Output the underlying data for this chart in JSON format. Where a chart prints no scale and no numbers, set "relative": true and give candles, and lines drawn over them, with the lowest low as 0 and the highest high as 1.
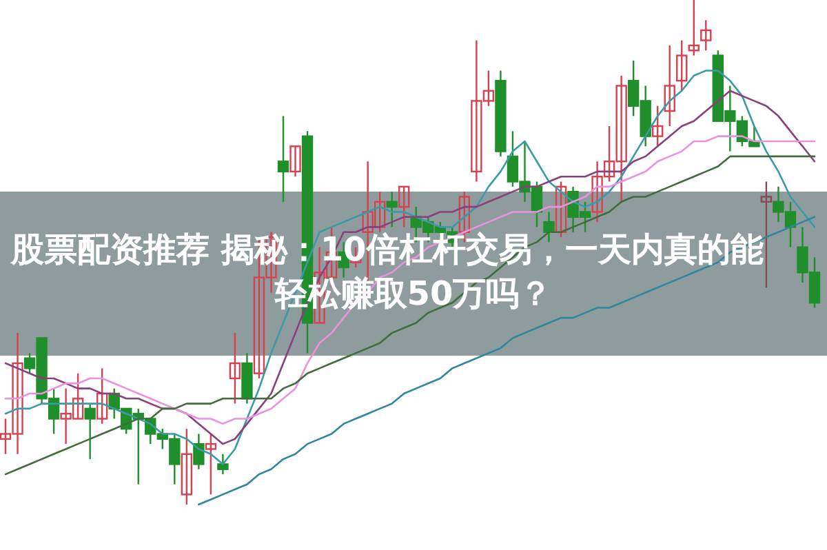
{
  "chart_data": {
    "type": "candlestick",
    "title": "股票配资推荐 揭秘：10倍杠杆交易，一天内真的能轻松赚取50万吗？",
    "relative": true,
    "categories": [
      null,
      null,
      null,
      null,
      null,
      null,
      null,
      null,
      null,
      null,
      null,
      null,
      null,
      null,
      null,
      null,
      null,
      null,
      null,
      null,
      null,
      null,
      null,
      null,
      null,
      null,
      null,
      null,
      null,
      null,
      null,
      null,
      null,
      null,
      null,
      null,
      null,
      null,
      null,
      null,
      null,
      null,
      null,
      null,
      null,
      null,
      null,
      null,
      null,
      null,
      null,
      null,
      null,
      null,
      null,
      null,
      null,
      null,
      null,
      null,
      null,
      null,
      null,
      null,
      null,
      null,
      null,
      null
    ],
    "colors": [
      "#d8404f",
      "#d8404f",
      "#1f8f2b",
      "#1f8f2b",
      "#1f8f2b",
      "#d8404f",
      "#d8404f",
      "#1f8f2b",
      "#d8404f",
      "#1f8f2b",
      "#1f8f2b",
      "#1f8f2b",
      "#1f8f2b",
      "#1f8f2b",
      "#1f8f2b",
      "#d8404f",
      "#1f8f2b",
      "#d8404f",
      "#1f8f2b",
      "#d8404f",
      "#1f8f2b",
      "#d8404f",
      "#d8404f",
      "#1f8f2b",
      "#d8404f",
      "#1f8f2b",
      "#d8404f",
      "#d8404f",
      "#1f8f2b",
      "#d8404f",
      "#d8404f",
      "#d8404f",
      "#1f8f2b",
      "#d8404f",
      "#1f8f2b",
      "#1f8f2b",
      "#1f8f2b",
      "#1f8f2b",
      "#d8404f",
      "#d8404f",
      "#d8404f",
      "#1f8f2b",
      "#1f8f2b",
      "#1f8f2b",
      "#1f8f2b",
      "#1f8f2b",
      "#d8404f",
      "#1f8f2b",
      "#1f8f2b",
      "#d8404f",
      "#d8404f",
      "#d8404f",
      "#1f8f2b",
      "#1f8f2b",
      "#d8404f",
      "#d8404f",
      "#d8404f",
      "#d8404f",
      "#d8404f",
      "#1f8f2b",
      "#1f8f2b",
      "#1f8f2b",
      "#1f8f2b",
      "#8a4a55",
      "#1f8f2b",
      "#1f8f2b",
      "#1f8f2b",
      "#1f8f2b"
    ],
    "ohlc": [
      [
        0.13,
        0.17,
        0.1,
        0.14
      ],
      [
        0.14,
        0.34,
        0.1,
        0.28
      ],
      [
        0.29,
        0.3,
        0.26,
        0.27
      ],
      [
        0.33,
        0.33,
        0.2,
        0.21
      ],
      [
        0.21,
        0.23,
        0.14,
        0.17
      ],
      [
        0.17,
        0.23,
        0.12,
        0.18
      ],
      [
        0.17,
        0.26,
        0.17,
        0.21
      ],
      [
        0.19,
        0.2,
        0.09,
        0.17
      ],
      [
        0.17,
        0.27,
        0.16,
        0.22
      ],
      [
        0.22,
        0.23,
        0.17,
        0.19
      ],
      [
        0.19,
        0.19,
        0.14,
        0.15
      ],
      [
        0.18,
        0.19,
        0.04,
        0.17
      ],
      [
        0.17,
        0.17,
        0.12,
        0.14
      ],
      [
        0.14,
        0.15,
        0.11,
        0.13
      ],
      [
        0.13,
        0.14,
        0.04,
        0.08
      ],
      [
        0.02,
        0.15,
        0,
        0.1
      ],
      [
        0.12,
        0.14,
        0.07,
        0.08
      ],
      [
        0.11,
        0.14,
        0.02,
        0.12
      ],
      [
        0.08,
        0.1,
        0.06,
        0.07
      ],
      [
        0.25,
        0.34,
        0.2,
        0.28
      ],
      [
        0.28,
        0.3,
        0.2,
        0.21
      ],
      [
        0.26,
        0.53,
        0.25,
        0.45
      ],
      [
        0.45,
        0.54,
        0.42,
        0.53
      ],
      [
        0.68,
        0.77,
        0.6,
        0.66
      ],
      [
        0.66,
        0.71,
        0.65,
        0.71
      ],
      [
        0.73,
        0.74,
        0.3,
        0.36
      ],
      [
        0.36,
        0.51,
        0.36,
        0.46
      ],
      [
        0.45,
        0.55,
        0.43,
        0.5
      ],
      [
        0.5,
        0.52,
        0.45,
        0.47
      ],
      [
        0.48,
        0.51,
        0.47,
        0.49
      ],
      [
        0.54,
        0.68,
        0.44,
        0.58
      ],
      [
        0.55,
        0.62,
        0.54,
        0.6
      ],
      [
        0.6,
        0.62,
        0.55,
        0.59
      ],
      [
        0.59,
        0.63,
        0.55,
        0.63
      ],
      [
        0.57,
        0.59,
        0.52,
        0.55
      ],
      [
        0.56,
        0.57,
        0.52,
        0.54
      ],
      [
        0.55,
        0.56,
        0.53,
        0.54
      ],
      [
        0.54,
        0.55,
        0.51,
        0.52
      ],
      [
        0.54,
        0.62,
        0.52,
        0.61
      ],
      [
        0.66,
        0.92,
        0.64,
        0.8
      ],
      [
        0.8,
        0.86,
        0.79,
        0.82
      ],
      [
        0.84,
        0.86,
        0.69,
        0.7
      ],
      [
        0.69,
        0.74,
        0.63,
        0.64
      ],
      [
        0.64,
        0.72,
        0.6,
        0.62
      ],
      [
        0.63,
        0.64,
        0.55,
        0.58
      ],
      [
        0.56,
        0.58,
        0.52,
        0.54
      ],
      [
        0.54,
        0.64,
        0.53,
        0.63
      ],
      [
        0.62,
        0.63,
        0.54,
        0.57
      ],
      [
        0.58,
        0.6,
        0.54,
        0.57
      ],
      [
        0.58,
        0.68,
        0.56,
        0.65
      ],
      [
        0.65,
        0.75,
        0.64,
        0.68
      ],
      [
        0.68,
        0.85,
        0.6,
        0.83
      ],
      [
        0.84,
        0.88,
        0.77,
        0.79
      ],
      [
        0.8,
        0.83,
        0.71,
        0.73
      ],
      [
        0.73,
        0.79,
        0.71,
        0.75
      ],
      [
        0.78,
        0.91,
        0.75,
        0.83
      ],
      [
        0.84,
        0.92,
        0.82,
        0.89
      ],
      [
        0.9,
        1,
        0.89,
        0.91
      ],
      [
        0.92,
        0.96,
        0.9,
        0.94
      ],
      [
        0.89,
        0.9,
        0.76,
        0.76
      ],
      [
        0.78,
        0.83,
        0.7,
        0.76
      ],
      [
        0.76,
        0.77,
        0.71,
        0.72
      ],
      [
        0.72,
        0.75,
        0.71,
        0.71
      ],
      [
        0.6,
        0.64,
        0.43,
        0.61
      ],
      [
        0.6,
        0.63,
        0.56,
        0.58
      ],
      [
        0.58,
        0.6,
        0.51,
        0.55
      ],
      [
        0.51,
        0.55,
        0.44,
        0.46
      ],
      [
        0.46,
        0.49,
        0.39,
        0.4
      ]
    ],
    "series": [
      {
        "type": "line",
        "color": "#3a9aa8",
        "values": [
          0.18,
          0.19,
          0.19,
          0.2,
          0.2,
          0.2,
          0.2,
          0.2,
          0.2,
          0.19,
          0.18,
          0.17,
          0.16,
          0.14,
          0.14,
          0.13,
          0.11,
          0.1,
          0.08,
          0.11,
          0.17,
          0.23,
          0.3,
          0.36,
          0.42,
          0.48,
          0.54,
          0.55,
          0.56,
          0.57,
          0.58,
          0.59,
          0.58,
          0.58,
          0.57,
          0.56,
          0.55,
          0.55,
          0.57,
          0.59,
          0.63,
          0.66,
          0.7,
          0.72,
          0.68,
          0.64,
          0.62,
          0.6,
          0.59,
          0.6,
          0.62,
          0.65,
          0.69,
          0.73,
          0.77,
          0.8,
          0.82,
          0.85,
          0.86,
          0.86,
          0.84,
          0.81,
          0.75,
          0.7,
          0.66,
          0.61,
          0.58,
          0.55
        ]
      },
      {
        "type": "line",
        "color": "#8a3f7f",
        "values": [
          0.28,
          0.27,
          0.26,
          0.25,
          0.25,
          0.24,
          0.23,
          0.23,
          0.22,
          0.22,
          0.21,
          0.21,
          0.2,
          0.19,
          0.19,
          0.18,
          0.16,
          0.14,
          0.12,
          0.13,
          0.16,
          0.19,
          0.22,
          0.28,
          0.34,
          0.4,
          0.45,
          0.49,
          0.54,
          0.54,
          0.55,
          0.55,
          0.56,
          0.57,
          0.57,
          0.57,
          0.58,
          0.58,
          0.59,
          0.59,
          0.6,
          0.61,
          0.62,
          0.63,
          0.63,
          0.64,
          0.65,
          0.65,
          0.65,
          0.66,
          0.66,
          0.66,
          0.68,
          0.69,
          0.71,
          0.73,
          0.75,
          0.76,
          0.78,
          0.8,
          0.82,
          0.81,
          0.8,
          0.79,
          0.77,
          0.74,
          0.71,
          0.68
        ]
      },
      {
        "type": "line",
        "color": "#e892e0",
        "values": [
          0.21,
          0.21,
          0.22,
          0.22,
          0.23,
          0.24,
          0.24,
          0.25,
          0.25,
          0.24,
          0.23,
          0.22,
          0.21,
          0.2,
          0.19,
          0.18,
          0.17,
          0.17,
          0.16,
          0.17,
          0.17,
          0.18,
          0.19,
          0.21,
          0.23,
          0.28,
          0.32,
          0.34,
          0.37,
          0.4,
          0.42,
          0.45,
          0.46,
          0.48,
          0.49,
          0.51,
          0.52,
          0.53,
          0.54,
          0.55,
          0.56,
          0.57,
          0.58,
          0.58,
          0.58,
          0.59,
          0.59,
          0.6,
          0.61,
          0.63,
          0.63,
          0.64,
          0.65,
          0.66,
          0.68,
          0.69,
          0.7,
          0.72,
          0.72,
          0.73,
          0.73,
          0.73,
          0.72,
          0.72,
          0.72,
          0.72,
          0.72,
          0.72
        ]
      },
      {
        "type": "line",
        "color": "#3f6e3a",
        "values": [
          0.06,
          0.07,
          0.08,
          0.09,
          0.1,
          0.11,
          0.12,
          0.13,
          0.14,
          0.15,
          0.16,
          0.17,
          0.17,
          0.19,
          0.19,
          0.2,
          0.2,
          0.2,
          0.21,
          0.21,
          0.21,
          0.21,
          0.21,
          0.23,
          0.24,
          0.26,
          0.27,
          0.28,
          0.29,
          0.3,
          0.31,
          0.32,
          0.34,
          0.35,
          0.36,
          0.38,
          0.39,
          0.4,
          0.42,
          0.44,
          0.45,
          0.47,
          0.49,
          0.51,
          0.52,
          0.54,
          0.54,
          0.55,
          0.56,
          0.57,
          0.58,
          0.6,
          0.61,
          0.61,
          0.62,
          0.63,
          0.64,
          0.65,
          0.66,
          0.67,
          0.69,
          0.69,
          0.69,
          0.69,
          0.69,
          0.69,
          0.69,
          0.69
        ]
      },
      {
        "type": "line",
        "color": "#2f86a0",
        "values": [
          null,
          null,
          null,
          null,
          null,
          null,
          null,
          null,
          null,
          null,
          null,
          null,
          null,
          null,
          null,
          null,
          0,
          0.01,
          0.02,
          0.03,
          0.04,
          0.06,
          0.07,
          0.09,
          0.1,
          0.12,
          0.13,
          0.14,
          0.16,
          0.17,
          0.18,
          0.19,
          0.2,
          0.22,
          0.23,
          0.24,
          0.25,
          0.27,
          0.28,
          0.29,
          0.3,
          0.31,
          0.33,
          0.34,
          0.35,
          0.36,
          0.37,
          0.37,
          0.38,
          0.39,
          0.39,
          0.4,
          0.41,
          0.42,
          0.43,
          0.44,
          0.45,
          0.46,
          0.47,
          0.48,
          0.5,
          0.51,
          0.52,
          0.53,
          0.54,
          0.55,
          0.56,
          0.57
        ]
      }
    ]
  }
}
